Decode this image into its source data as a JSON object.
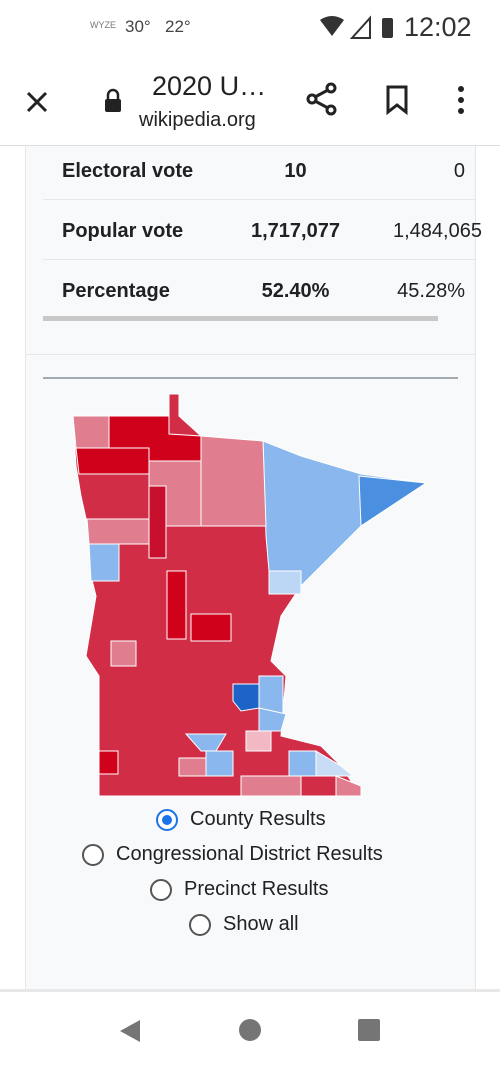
{
  "status_bar": {
    "icon_label": "WYZE",
    "temp1": "30°",
    "temp2": "22°",
    "time": "12:02"
  },
  "browser": {
    "title": "2020 U…",
    "domain": "wikipedia.org"
  },
  "table": {
    "rows": [
      [
        "Electoral vote",
        "10",
        "0"
      ],
      [
        "Popular vote",
        "1,717,077",
        "1,484,065"
      ],
      [
        "Percentage",
        "52.40%",
        "45.28%"
      ]
    ]
  },
  "map_options": [
    {
      "label": "County Results",
      "selected": true
    },
    {
      "label": "Congressional District Results",
      "selected": false
    },
    {
      "label": "Precinct Results",
      "selected": false
    },
    {
      "label": "Show all",
      "selected": false
    }
  ]
}
